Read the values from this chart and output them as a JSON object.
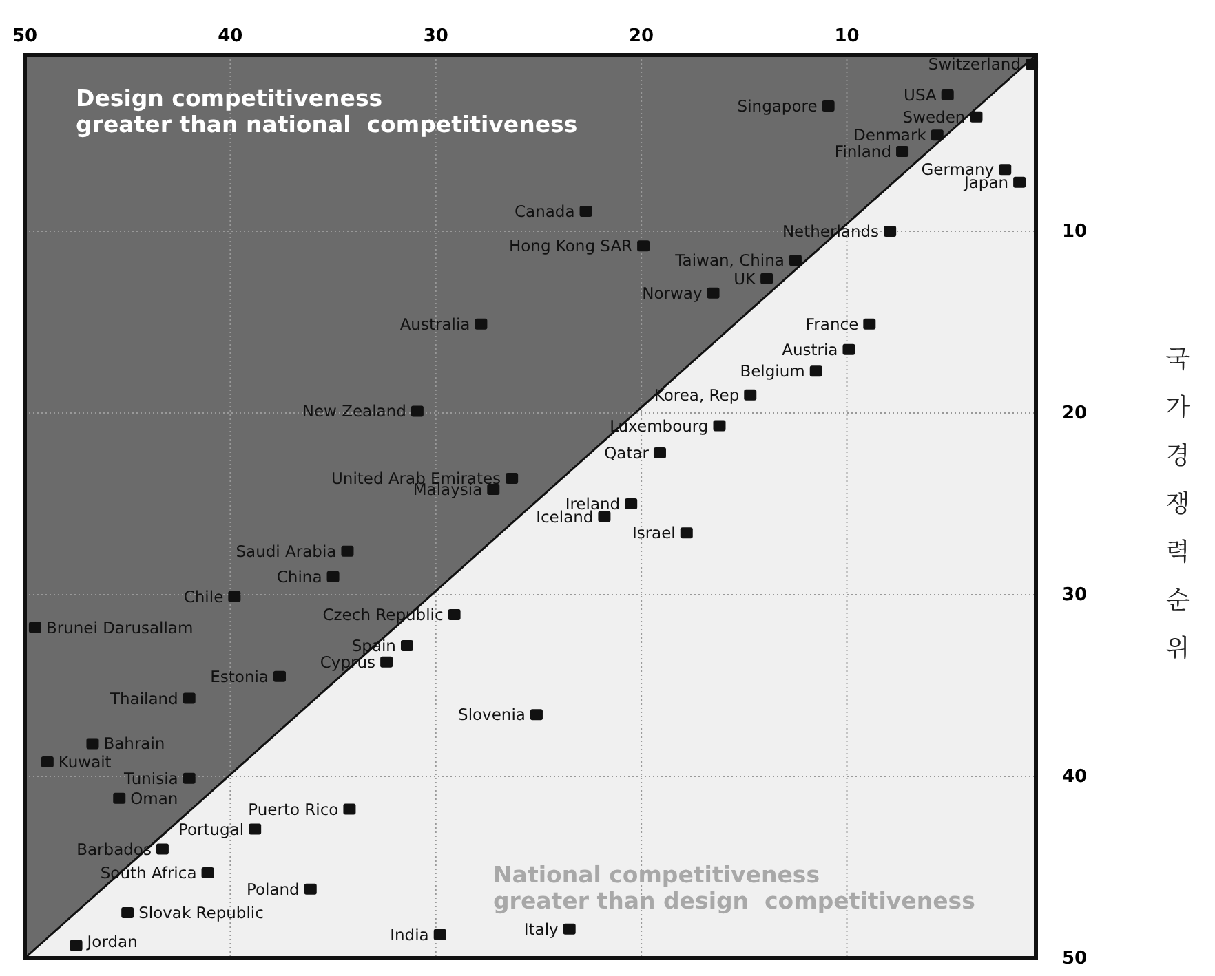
{
  "chart_data": {
    "type": "scatter",
    "ylabel": "국가경쟁력순위",
    "xlim": [
      50,
      0.8
    ],
    "xticks": [
      50,
      40,
      30,
      20,
      10
    ],
    "ylim": [
      50,
      0.3
    ],
    "yticks": [
      10,
      20,
      30,
      40,
      50
    ],
    "grid": true,
    "marker": "square",
    "series": [
      {
        "type": "line",
        "color": "#111111",
        "line_style": "solid",
        "marker": "none",
        "x": [
          50,
          0.8
        ],
        "values": [
          50,
          0.3
        ]
      },
      {
        "color": "#111111",
        "x": [
          1.0,
          5.1,
          3.7,
          5.6,
          7.3,
          2.3,
          1.6,
          10.9,
          22.7,
          7.9,
          19.9,
          12.5,
          13.9,
          16.5,
          27.8,
          8.9,
          9.9,
          11.5,
          14.7,
          30.9,
          16.2,
          19.1,
          26.3,
          27.2,
          20.5,
          21.8,
          17.8,
          34.3,
          35.0,
          39.8,
          29.1,
          49.5,
          31.4,
          32.4,
          37.6,
          42.0,
          25.1,
          46.7,
          48.9,
          42.0,
          45.4,
          34.2,
          38.8,
          43.3,
          41.1,
          36.1,
          45.0,
          47.5,
          29.8,
          23.5
        ],
        "values": [
          0.8,
          2.5,
          3.7,
          4.7,
          5.6,
          6.6,
          7.3,
          3.1,
          8.9,
          10.0,
          10.8,
          11.6,
          12.6,
          13.4,
          15.1,
          15.1,
          16.5,
          17.7,
          19.0,
          19.9,
          20.7,
          22.2,
          23.6,
          24.2,
          25.0,
          25.7,
          26.6,
          27.6,
          29.0,
          30.1,
          31.1,
          31.8,
          32.8,
          33.7,
          34.5,
          35.7,
          36.6,
          38.2,
          39.2,
          40.1,
          41.2,
          41.8,
          42.9,
          44.0,
          45.3,
          46.2,
          47.5,
          49.3,
          48.7,
          48.4
        ]
      }
    ],
    "annotations": [
      "Design competitiveness\ngreater than national  competitiveness",
      "National competitiveness\ngreater than design  competitiveness",
      {
        "text": "Switzerland",
        "x": 1.0,
        "y": 0.8
      },
      {
        "text": "USA",
        "x": 5.1,
        "y": 2.5
      },
      {
        "text": "Sweden",
        "x": 3.7,
        "y": 3.7
      },
      {
        "text": "Denmark",
        "x": 5.6,
        "y": 4.7
      },
      {
        "text": "Finland",
        "x": 7.3,
        "y": 5.6
      },
      {
        "text": "Germany",
        "x": 2.3,
        "y": 6.6
      },
      {
        "text": "Japan",
        "x": 1.6,
        "y": 7.3
      },
      {
        "text": "Singapore",
        "x": 10.9,
        "y": 3.1
      },
      {
        "text": "Canada",
        "x": 22.7,
        "y": 8.9
      },
      {
        "text": "Netherlands",
        "x": 7.9,
        "y": 10.0
      },
      {
        "text": "Hong Kong SAR",
        "x": 19.9,
        "y": 10.8
      },
      {
        "text": "Taiwan, China",
        "x": 12.5,
        "y": 11.6
      },
      {
        "text": "UK",
        "x": 13.9,
        "y": 12.6
      },
      {
        "text": "Norway",
        "x": 16.5,
        "y": 13.4
      },
      {
        "text": "Australia",
        "x": 27.8,
        "y": 15.1
      },
      {
        "text": "France",
        "x": 8.9,
        "y": 15.1
      },
      {
        "text": "Austria",
        "x": 9.9,
        "y": 16.5
      },
      {
        "text": "Belgium",
        "x": 11.5,
        "y": 17.7
      },
      {
        "text": "Korea, Rep",
        "x": 14.7,
        "y": 19.0
      },
      {
        "text": "New Zealand",
        "x": 30.9,
        "y": 19.9
      },
      {
        "text": "Luxembourg",
        "x": 16.2,
        "y": 20.7
      },
      {
        "text": "Qatar",
        "x": 19.1,
        "y": 22.2
      },
      {
        "text": "United Arab Emirates",
        "x": 26.3,
        "y": 23.6
      },
      {
        "text": "Malaysia",
        "x": 27.2,
        "y": 24.2
      },
      {
        "text": "Ireland",
        "x": 20.5,
        "y": 25.0
      },
      {
        "text": "Iceland",
        "x": 21.8,
        "y": 25.7
      },
      {
        "text": "Israel",
        "x": 17.8,
        "y": 26.6
      },
      {
        "text": "Saudi Arabia",
        "x": 34.3,
        "y": 27.6
      },
      {
        "text": "China",
        "x": 35.0,
        "y": 29.0
      },
      {
        "text": "Chile",
        "x": 39.8,
        "y": 30.1
      },
      {
        "text": "Czech Republic",
        "x": 29.1,
        "y": 31.1
      },
      {
        "text": "Brunei Darusallam",
        "x": 49.5,
        "y": 31.8
      },
      {
        "text": "Spain",
        "x": 31.4,
        "y": 32.8
      },
      {
        "text": "Cyprus",
        "x": 32.4,
        "y": 33.7
      },
      {
        "text": "Estonia",
        "x": 37.6,
        "y": 34.5
      },
      {
        "text": "Thailand",
        "x": 42.0,
        "y": 35.7
      },
      {
        "text": "Slovenia",
        "x": 25.1,
        "y": 36.6
      },
      {
        "text": "Bahrain",
        "x": 46.7,
        "y": 38.2
      },
      {
        "text": "Kuwait",
        "x": 48.9,
        "y": 39.2
      },
      {
        "text": "Tunisia",
        "x": 42.0,
        "y": 40.1
      },
      {
        "text": "Oman",
        "x": 45.4,
        "y": 41.2
      },
      {
        "text": "Puerto Rico",
        "x": 34.2,
        "y": 41.8
      },
      {
        "text": "Portugal",
        "x": 38.8,
        "y": 42.9
      },
      {
        "text": "Barbados",
        "x": 43.3,
        "y": 44.0
      },
      {
        "text": "South Africa",
        "x": 41.1,
        "y": 45.3
      },
      {
        "text": "Poland",
        "x": 36.1,
        "y": 46.2
      },
      {
        "text": "Slovak Republic",
        "x": 45.0,
        "y": 47.5
      },
      {
        "text": "Jordan",
        "x": 47.5,
        "y": 49.3
      },
      {
        "text": "India",
        "x": 29.8,
        "y": 48.7
      },
      {
        "text": "Italy",
        "x": 23.5,
        "y": 48.4
      }
    ]
  }
}
